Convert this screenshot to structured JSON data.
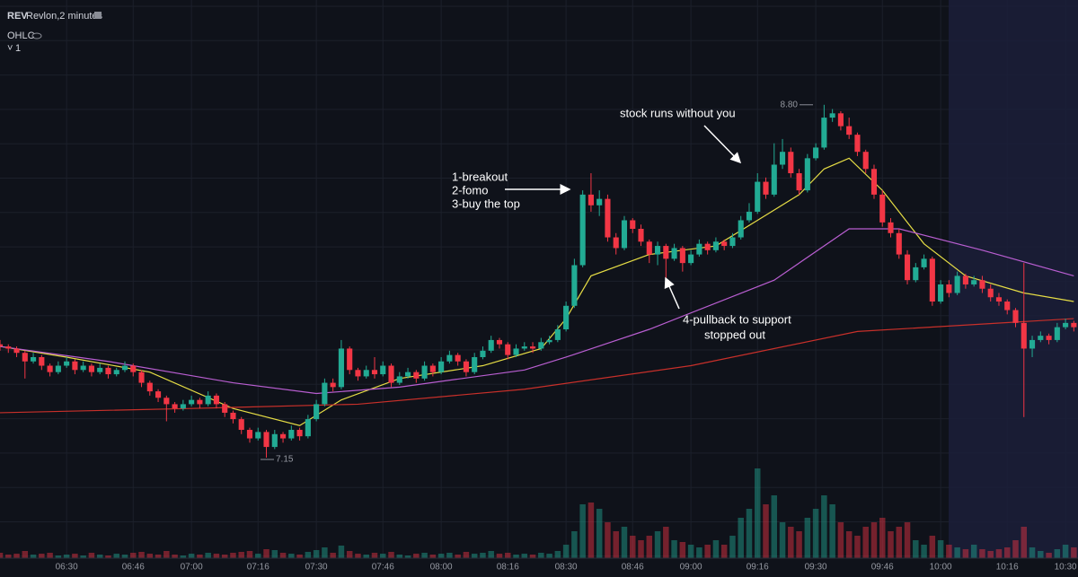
{
  "header": {
    "symbol": "REV",
    "name": "Revlon,2 minutes",
    "indicator": "OHLC",
    "collapse": "1"
  },
  "chart_data": {
    "type": "candlestick",
    "xlim": [
      374,
      633
    ],
    "ylim": [
      6.68,
      9.29
    ],
    "vlim": [
      0,
      100
    ],
    "xticks": [
      {
        "value": 390,
        "label": "06:30"
      },
      {
        "value": 406,
        "label": "06:46"
      },
      {
        "value": 420,
        "label": "07:00"
      },
      {
        "value": 436,
        "label": "07:16"
      },
      {
        "value": 450,
        "label": "07:30"
      },
      {
        "value": 466,
        "label": "07:46"
      },
      {
        "value": 480,
        "label": "08:00"
      },
      {
        "value": 496,
        "label": "08:16"
      },
      {
        "value": 510,
        "label": "08:30"
      },
      {
        "value": 526,
        "label": "08:46"
      },
      {
        "value": 540,
        "label": "09:00"
      },
      {
        "value": 556,
        "label": "09:16"
      },
      {
        "value": 570,
        "label": "09:30"
      },
      {
        "value": 586,
        "label": "09:46"
      },
      {
        "value": 600,
        "label": "10:00"
      },
      {
        "value": 616,
        "label": "10:16"
      },
      {
        "value": 630,
        "label": "10:30"
      }
    ],
    "up_color": "#22ab94",
    "down_color": "#f23645",
    "x": [
      374,
      376,
      378,
      380,
      382,
      384,
      386,
      388,
      390,
      392,
      394,
      396,
      398,
      400,
      402,
      404,
      406,
      408,
      410,
      412,
      414,
      416,
      418,
      420,
      422,
      424,
      426,
      428,
      430,
      432,
      434,
      436,
      438,
      440,
      442,
      444,
      446,
      448,
      450,
      452,
      454,
      456,
      458,
      460,
      462,
      464,
      466,
      468,
      470,
      472,
      474,
      476,
      478,
      480,
      482,
      484,
      486,
      488,
      490,
      492,
      494,
      496,
      498,
      500,
      502,
      504,
      506,
      508,
      510,
      512,
      514,
      516,
      518,
      520,
      522,
      524,
      526,
      528,
      530,
      532,
      534,
      536,
      538,
      540,
      542,
      544,
      546,
      548,
      550,
      552,
      554,
      556,
      558,
      560,
      562,
      564,
      566,
      568,
      570,
      572,
      574,
      576,
      578,
      580,
      582,
      584,
      586,
      588,
      590,
      592,
      594,
      596,
      598,
      600,
      602,
      604,
      606,
      608,
      610,
      612,
      614,
      616,
      618,
      620,
      622,
      624,
      626,
      628,
      630,
      632
    ],
    "ohlc": [
      [
        7.68,
        7.7,
        7.65,
        7.67
      ],
      [
        7.67,
        7.68,
        7.64,
        7.66
      ],
      [
        7.66,
        7.67,
        7.62,
        7.64
      ],
      [
        7.64,
        7.65,
        7.52,
        7.6
      ],
      [
        7.6,
        7.64,
        7.59,
        7.62
      ],
      [
        7.62,
        7.63,
        7.56,
        7.58
      ],
      [
        7.58,
        7.59,
        7.53,
        7.55
      ],
      [
        7.55,
        7.6,
        7.54,
        7.58
      ],
      [
        7.58,
        7.62,
        7.57,
        7.6
      ],
      [
        7.6,
        7.61,
        7.54,
        7.56
      ],
      [
        7.56,
        7.6,
        7.55,
        7.58
      ],
      [
        7.58,
        7.59,
        7.53,
        7.55
      ],
      [
        7.55,
        7.59,
        7.54,
        7.57
      ],
      [
        7.57,
        7.58,
        7.52,
        7.54
      ],
      [
        7.54,
        7.57,
        7.53,
        7.56
      ],
      [
        7.56,
        7.6,
        7.55,
        7.58
      ],
      [
        7.58,
        7.59,
        7.53,
        7.55
      ],
      [
        7.55,
        7.56,
        7.48,
        7.5
      ],
      [
        7.5,
        7.51,
        7.44,
        7.46
      ],
      [
        7.46,
        7.47,
        7.41,
        7.43
      ],
      [
        7.43,
        7.44,
        7.32,
        7.4
      ],
      [
        7.4,
        7.41,
        7.36,
        7.38
      ],
      [
        7.38,
        7.42,
        7.37,
        7.4
      ],
      [
        7.4,
        7.44,
        7.39,
        7.42
      ],
      [
        7.42,
        7.43,
        7.38,
        7.4
      ],
      [
        7.4,
        7.46,
        7.39,
        7.44
      ],
      [
        7.44,
        7.45,
        7.38,
        7.4
      ],
      [
        7.4,
        7.41,
        7.34,
        7.36
      ],
      [
        7.36,
        7.37,
        7.31,
        7.33
      ],
      [
        7.33,
        7.34,
        7.26,
        7.28
      ],
      [
        7.28,
        7.29,
        7.22,
        7.24
      ],
      [
        7.24,
        7.29,
        7.23,
        7.27
      ],
      [
        7.27,
        7.28,
        7.15,
        7.2
      ],
      [
        7.2,
        7.28,
        7.19,
        7.26
      ],
      [
        7.26,
        7.27,
        7.22,
        7.24
      ],
      [
        7.24,
        7.3,
        7.23,
        7.28
      ],
      [
        7.28,
        7.29,
        7.23,
        7.25
      ],
      [
        7.25,
        7.35,
        7.24,
        7.33
      ],
      [
        7.33,
        7.42,
        7.32,
        7.4
      ],
      [
        7.4,
        7.52,
        7.39,
        7.5
      ],
      [
        7.5,
        7.52,
        7.46,
        7.48
      ],
      [
        7.48,
        7.7,
        7.47,
        7.66
      ],
      [
        7.66,
        7.67,
        7.54,
        7.56
      ],
      [
        7.56,
        7.57,
        7.51,
        7.53
      ],
      [
        7.53,
        7.58,
        7.52,
        7.56
      ],
      [
        7.56,
        7.62,
        7.52,
        7.54
      ],
      [
        7.54,
        7.6,
        7.53,
        7.58
      ],
      [
        7.58,
        7.59,
        7.48,
        7.5
      ],
      [
        7.5,
        7.55,
        7.49,
        7.53
      ],
      [
        7.53,
        7.57,
        7.52,
        7.55
      ],
      [
        7.55,
        7.56,
        7.5,
        7.52
      ],
      [
        7.52,
        7.6,
        7.51,
        7.58
      ],
      [
        7.58,
        7.59,
        7.53,
        7.55
      ],
      [
        7.55,
        7.62,
        7.54,
        7.6
      ],
      [
        7.6,
        7.65,
        7.59,
        7.63
      ],
      [
        7.63,
        7.64,
        7.58,
        7.6
      ],
      [
        7.6,
        7.61,
        7.53,
        7.55
      ],
      [
        7.55,
        7.64,
        7.54,
        7.62
      ],
      [
        7.62,
        7.67,
        7.61,
        7.65
      ],
      [
        7.65,
        7.72,
        7.64,
        7.7
      ],
      [
        7.7,
        7.71,
        7.66,
        7.68
      ],
      [
        7.68,
        7.69,
        7.61,
        7.63
      ],
      [
        7.63,
        7.68,
        7.62,
        7.66
      ],
      [
        7.66,
        7.69,
        7.65,
        7.67
      ],
      [
        7.67,
        7.69,
        7.64,
        7.66
      ],
      [
        7.66,
        7.71,
        7.65,
        7.69
      ],
      [
        7.69,
        7.72,
        7.68,
        7.7
      ],
      [
        7.7,
        7.77,
        7.69,
        7.75
      ],
      [
        7.75,
        7.88,
        7.74,
        7.86
      ],
      [
        7.86,
        8.08,
        7.85,
        8.05
      ],
      [
        8.05,
        8.4,
        8.04,
        8.38
      ],
      [
        8.38,
        8.48,
        8.3,
        8.33
      ],
      [
        8.33,
        8.4,
        8.28,
        8.36
      ],
      [
        8.36,
        8.38,
        8.16,
        8.18
      ],
      [
        8.18,
        8.2,
        8.1,
        8.13
      ],
      [
        8.13,
        8.28,
        8.12,
        8.26
      ],
      [
        8.26,
        8.27,
        8.2,
        8.22
      ],
      [
        8.22,
        8.24,
        8.14,
        8.16
      ],
      [
        8.16,
        8.17,
        8.06,
        8.1
      ],
      [
        8.1,
        8.16,
        8.05,
        8.14
      ],
      [
        8.14,
        8.15,
        7.95,
        8.08
      ],
      [
        8.08,
        8.15,
        8.07,
        8.13
      ],
      [
        8.13,
        8.14,
        8.02,
        8.06
      ],
      [
        8.06,
        8.12,
        8.05,
        8.1
      ],
      [
        8.1,
        8.17,
        8.09,
        8.15
      ],
      [
        8.15,
        8.16,
        8.1,
        8.12
      ],
      [
        8.12,
        8.18,
        8.11,
        8.16
      ],
      [
        8.16,
        8.17,
        8.12,
        8.14
      ],
      [
        8.14,
        8.2,
        8.13,
        8.18
      ],
      [
        8.18,
        8.28,
        8.17,
        8.26
      ],
      [
        8.26,
        8.34,
        8.25,
        8.3
      ],
      [
        8.3,
        8.48,
        8.29,
        8.44
      ],
      [
        8.44,
        8.46,
        8.36,
        8.38
      ],
      [
        8.38,
        8.62,
        8.37,
        8.52
      ],
      [
        8.52,
        8.64,
        8.5,
        8.58
      ],
      [
        8.58,
        8.6,
        8.46,
        8.48
      ],
      [
        8.48,
        8.5,
        8.38,
        8.4
      ],
      [
        8.4,
        8.57,
        8.39,
        8.55
      ],
      [
        8.55,
        8.62,
        8.54,
        8.6
      ],
      [
        8.6,
        8.8,
        8.59,
        8.74
      ],
      [
        8.74,
        8.78,
        8.72,
        8.76
      ],
      [
        8.76,
        8.77,
        8.68,
        8.7
      ],
      [
        8.7,
        8.74,
        8.64,
        8.66
      ],
      [
        8.66,
        8.67,
        8.56,
        8.58
      ],
      [
        8.58,
        8.59,
        8.48,
        8.5
      ],
      [
        8.5,
        8.52,
        8.36,
        8.38
      ],
      [
        8.38,
        8.4,
        8.23,
        8.25
      ],
      [
        8.25,
        8.27,
        8.18,
        8.2
      ],
      [
        8.2,
        8.22,
        8.08,
        8.1
      ],
      [
        8.1,
        8.12,
        7.96,
        7.98
      ],
      [
        7.98,
        8.06,
        7.97,
        8.04
      ],
      [
        8.04,
        8.1,
        8.03,
        8.08
      ],
      [
        8.08,
        8.09,
        7.86,
        7.88
      ],
      [
        7.88,
        7.98,
        7.87,
        7.96
      ],
      [
        7.96,
        7.98,
        7.9,
        7.92
      ],
      [
        7.92,
        8.02,
        7.91,
        8.0
      ],
      [
        8.0,
        8.01,
        7.94,
        7.96
      ],
      [
        7.96,
        8.0,
        7.95,
        7.98
      ],
      [
        7.98,
        8.0,
        7.92,
        7.94
      ],
      [
        7.94,
        7.96,
        7.88,
        7.9
      ],
      [
        7.9,
        7.92,
        7.86,
        7.88
      ],
      [
        7.88,
        7.89,
        7.82,
        7.84
      ],
      [
        7.84,
        7.85,
        7.76,
        7.78
      ],
      [
        7.78,
        8.06,
        7.34,
        7.66
      ],
      [
        7.66,
        7.72,
        7.62,
        7.7
      ],
      [
        7.7,
        7.74,
        7.69,
        7.72
      ],
      [
        7.72,
        7.73,
        7.68,
        7.7
      ],
      [
        7.7,
        7.78,
        7.69,
        7.76
      ],
      [
        7.76,
        7.8,
        7.75,
        7.78
      ],
      [
        7.78,
        7.79,
        7.74,
        7.76
      ]
    ],
    "volume": [
      6,
      4,
      5,
      8,
      4,
      5,
      6,
      3,
      4,
      5,
      3,
      6,
      4,
      3,
      5,
      4,
      6,
      7,
      5,
      4,
      8,
      4,
      3,
      5,
      4,
      6,
      5,
      4,
      6,
      7,
      8,
      5,
      10,
      9,
      6,
      5,
      4,
      7,
      9,
      12,
      6,
      14,
      8,
      5,
      4,
      6,
      5,
      7,
      4,
      3,
      5,
      6,
      4,
      5,
      6,
      4,
      7,
      5,
      6,
      8,
      5,
      6,
      4,
      5,
      4,
      6,
      5,
      8,
      15,
      30,
      60,
      62,
      55,
      40,
      30,
      35,
      25,
      20,
      25,
      30,
      35,
      20,
      18,
      15,
      12,
      15,
      20,
      15,
      25,
      45,
      55,
      100,
      60,
      70,
      40,
      35,
      30,
      45,
      55,
      70,
      60,
      40,
      30,
      25,
      35,
      40,
      45,
      30,
      35,
      40,
      20,
      15,
      25,
      20,
      15,
      12,
      10,
      15,
      10,
      8,
      10,
      12,
      20,
      35,
      12,
      8,
      6,
      10,
      15,
      12
    ],
    "lines": [
      {
        "color": "#e6dd45",
        "x": [
          374,
          390,
          410,
          430,
          446,
          456,
          470,
          490,
          504,
          510,
          516,
          530,
          546,
          556,
          566,
          572,
          578,
          586,
          596,
          606,
          620,
          632
        ],
        "values": [
          7.67,
          7.62,
          7.55,
          7.38,
          7.3,
          7.42,
          7.52,
          7.58,
          7.66,
          7.8,
          8.0,
          8.1,
          8.14,
          8.26,
          8.38,
          8.5,
          8.55,
          8.4,
          8.15,
          8.0,
          7.92,
          7.88
        ]
      },
      {
        "color": "#b95ed1",
        "x": [
          374,
          400,
          430,
          450,
          470,
          500,
          510,
          530,
          560,
          578,
          590,
          610,
          632
        ],
        "values": [
          7.67,
          7.6,
          7.5,
          7.45,
          7.48,
          7.56,
          7.62,
          7.75,
          7.98,
          8.22,
          8.22,
          8.12,
          8.0
        ]
      },
      {
        "color": "#c8302a",
        "x": [
          374,
          420,
          460,
          500,
          540,
          580,
          632
        ],
        "values": [
          7.36,
          7.38,
          7.4,
          7.47,
          7.58,
          7.74,
          7.8
        ]
      }
    ],
    "high_marker": {
      "value": 8.8,
      "label": "8.80"
    },
    "low_marker": 7.15,
    "annotations": [
      "1-breakout",
      "2-fomo",
      "3-buy the top",
      "stock runs without you",
      "4-pullback to support",
      "stopped out"
    ]
  }
}
